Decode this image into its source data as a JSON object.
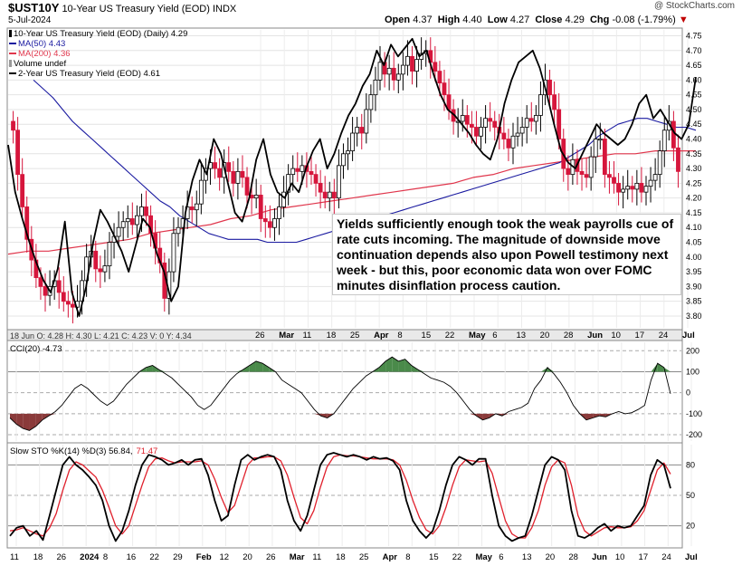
{
  "header": {
    "symbol": "$UST10Y",
    "name": "10-Year US Treasury Yield (EOD)",
    "exchange": "INDX",
    "date": "5-Jul-2024",
    "open_label": "Open",
    "open": "4.37",
    "high_label": "High",
    "high": "4.40",
    "low_label": "Low",
    "low": "4.27",
    "close_label": "Close",
    "close": "4.29",
    "chg_label": "Chg",
    "chg": "-0.08 (-1.79%)",
    "chg_icon": "down-triangle-icon",
    "watermark": "@ StockCharts.com"
  },
  "legend": {
    "main": "10-Year US Treasury Yield (EOD) (Daily) 4.29",
    "ma50": "MA(50) 4.43",
    "ma200": "MA(200) 4.36",
    "volume": "Volume undef",
    "two_year": "2-Year US Treasury Yield (EOD) 4.61"
  },
  "annotation": "Yields sufficiently enough took the weak payrolls cue of rate cuts incoming. The magnitude of downside move continuation depends also upon Powell testimony next week - but this, poor economic data won over FOMC minutes disinflation process caution.",
  "ohlc_readout": "18 Jun O: 4.28  H: 4.30  L: 4.21  C: 4.23  V: 0  Y: 4.34",
  "cci_label": "CCI(20) -4.73",
  "sto_label": "Slow STO %K(14) %D(3) 56.84, 71.47",
  "sto_label_k": "Slow STO %K(14) %D(3) 56.84,",
  "sto_label_d": "71.47",
  "colors": {
    "up": "#000000",
    "down": "#d6163c",
    "ma50": "#1a1aa0",
    "ma200": "#e0364c",
    "two_year": "#000000",
    "cci_fill": "#4a8a4a",
    "cci_fill_neg": "#8a3a3a",
    "sto_k": "#000000",
    "sto_d": "#e0202c"
  },
  "chart_data": [
    {
      "type": "candlestick",
      "title": "$UST10Y 10-Year US Treasury Yield (EOD) INDX",
      "ylim": [
        3.76,
        4.77
      ],
      "yticks": [
        "3.80",
        "3.85",
        "3.90",
        "3.95",
        "4.00",
        "4.05",
        "4.10",
        "4.15",
        "4.20",
        "4.25",
        "4.30",
        "4.35",
        "4.40",
        "4.45",
        "4.50",
        "4.55",
        "4.60",
        "4.65",
        "4.70",
        "4.75"
      ],
      "x_labels_main": [
        "26",
        "Mar",
        "11",
        "18",
        "25",
        "Apr",
        "8",
        "15",
        "22",
        "May",
        "6",
        "13",
        "20",
        "28",
        "Jun",
        "10",
        "17",
        "24",
        "Jul"
      ],
      "x_labels_bottom": [
        "11",
        "18",
        "26",
        "2024",
        "8",
        "16",
        "22",
        "29",
        "Feb",
        "12",
        "20",
        "26",
        "Mar",
        "11",
        "18",
        "25",
        "Apr",
        "8",
        "15",
        "22",
        "May",
        "6",
        "13",
        "20",
        "28",
        "Jun",
        "10",
        "17",
        "24",
        "Jul"
      ],
      "closes": [
        4.43,
        4.28,
        4.17,
        4.06,
        3.99,
        3.93,
        3.9,
        3.87,
        3.9,
        3.92,
        3.88,
        3.85,
        3.84,
        3.83,
        3.85,
        3.92,
        4.0,
        4.02,
        3.96,
        3.95,
        3.97,
        4.05,
        4.07,
        4.1,
        4.12,
        4.13,
        4.11,
        4.14,
        4.17,
        4.14,
        4.08,
        4.03,
        3.98,
        3.86,
        3.95,
        4.08,
        4.1,
        4.13,
        4.17,
        4.16,
        4.18,
        4.26,
        4.3,
        4.32,
        4.3,
        4.27,
        4.32,
        4.29,
        4.25,
        4.29,
        4.27,
        4.21,
        4.2,
        4.21,
        4.13,
        4.12,
        4.1,
        4.13,
        4.17,
        4.22,
        4.28,
        4.3,
        4.29,
        4.31,
        4.29,
        4.28,
        4.25,
        4.22,
        4.2,
        4.22,
        4.2,
        4.31,
        4.35,
        4.36,
        4.42,
        4.44,
        4.42,
        4.5,
        4.55,
        4.6,
        4.66,
        4.62,
        4.64,
        4.6,
        4.62,
        4.65,
        4.68,
        4.63,
        4.67,
        4.69,
        4.7,
        4.66,
        4.63,
        4.59,
        4.55,
        4.5,
        4.46,
        4.46,
        4.48,
        4.45,
        4.44,
        4.41,
        4.44,
        4.47,
        4.46,
        4.44,
        4.42,
        4.4,
        4.37,
        4.41,
        4.42,
        4.44,
        4.47,
        4.46,
        4.48,
        4.55,
        4.6,
        4.55,
        4.5,
        4.4,
        4.3,
        4.28,
        4.33,
        4.29,
        4.28,
        4.27,
        4.34,
        4.4,
        4.4,
        4.28,
        4.27,
        4.25,
        4.22,
        4.23,
        4.24,
        4.23,
        4.25,
        4.22,
        4.24,
        4.26,
        4.28,
        4.36,
        4.43,
        4.46,
        4.37,
        4.29
      ],
      "series": [
        {
          "name": "MA(50) 4.43",
          "values": [
            4.6,
            4.57,
            4.54,
            4.5,
            4.46,
            4.43,
            4.4,
            4.37,
            4.34,
            4.31,
            4.28,
            4.25,
            4.22,
            4.19,
            4.17,
            4.14,
            4.12,
            4.1,
            4.08,
            4.07,
            4.06,
            4.06,
            4.06,
            4.06,
            4.05,
            4.05,
            4.05,
            4.05,
            4.06,
            4.07,
            4.08,
            4.09,
            4.1,
            4.11,
            4.12,
            4.13,
            4.14,
            4.15,
            4.16,
            4.17,
            4.18,
            4.19,
            4.2,
            4.21,
            4.22,
            4.23,
            4.24,
            4.25,
            4.26,
            4.27,
            4.28,
            4.29,
            4.3,
            4.31,
            4.32,
            4.34,
            4.36,
            4.38,
            4.41,
            4.43,
            4.45,
            4.46,
            4.47,
            4.47,
            4.46,
            4.45,
            4.44,
            4.44,
            4.43
          ]
        },
        {
          "name": "MA(200) 4.36",
          "values": [
            4.01,
            4.02,
            4.02,
            4.03,
            4.04,
            4.05,
            4.06,
            4.08,
            4.09,
            4.1,
            4.11,
            4.13,
            4.14,
            4.16,
            4.17,
            4.18,
            4.19,
            4.2,
            4.21,
            4.22,
            4.23,
            4.24,
            4.25,
            4.27,
            4.28,
            4.3,
            4.31,
            4.32,
            4.33,
            4.34,
            4.35,
            4.35,
            4.36,
            4.36,
            4.36
          ]
        },
        {
          "name": "2-Year US Treasury Yield (EOD) 4.61",
          "values": [
            4.38,
            4.22,
            4.13,
            4.05,
            3.98,
            3.92,
            3.88,
            3.96,
            4.12,
            3.88,
            3.8,
            3.9,
            4.05,
            4.16,
            4.12,
            4.07,
            4.02,
            3.95,
            4.04,
            4.13,
            4.1,
            4.01,
            3.95,
            3.85,
            3.9,
            4.15,
            4.26,
            4.33,
            4.28,
            4.4,
            4.35,
            4.25,
            4.15,
            4.12,
            4.2,
            4.33,
            4.4,
            4.28,
            4.22,
            4.2,
            4.25,
            4.22,
            4.3,
            4.36,
            4.4,
            4.3,
            4.35,
            4.42,
            4.48,
            4.52,
            4.58,
            4.62,
            4.7,
            4.65,
            4.72,
            4.68,
            4.71,
            4.74,
            4.68,
            4.7,
            4.62,
            4.55,
            4.5,
            4.48,
            4.45,
            4.42,
            4.38,
            4.35,
            4.33,
            4.4,
            4.52,
            4.6,
            4.66,
            4.68,
            4.7,
            4.64,
            4.55,
            4.45,
            4.36,
            4.32,
            4.3,
            4.35,
            4.4,
            4.45,
            4.42,
            4.4,
            4.38,
            4.4,
            4.45,
            4.52,
            4.55,
            4.47,
            4.5,
            4.46,
            4.42,
            4.4,
            4.45,
            4.61
          ]
        }
      ]
    },
    {
      "type": "area",
      "title": "CCI(20) -4.73",
      "ylim": [
        -230,
        240
      ],
      "yticks": [
        -200,
        -100,
        0,
        100,
        200
      ],
      "values": [
        -120,
        -150,
        -170,
        -180,
        -160,
        -130,
        -110,
        -90,
        -60,
        -20,
        20,
        40,
        20,
        -10,
        -40,
        -60,
        -40,
        0,
        40,
        70,
        100,
        120,
        130,
        110,
        90,
        70,
        40,
        10,
        -20,
        -60,
        -80,
        -60,
        -20,
        20,
        60,
        90,
        110,
        130,
        150,
        140,
        120,
        100,
        60,
        40,
        20,
        0,
        -40,
        -80,
        -110,
        -120,
        -100,
        -60,
        -20,
        20,
        50,
        80,
        100,
        120,
        150,
        170,
        150,
        160,
        130,
        110,
        90,
        70,
        60,
        50,
        30,
        0,
        -40,
        -80,
        -110,
        -130,
        -120,
        -100,
        -110,
        -90,
        -80,
        -70,
        -50,
        20,
        60,
        120,
        90,
        50,
        0,
        -60,
        -100,
        -130,
        -120,
        -110,
        -115,
        -100,
        -90,
        -100,
        -95,
        -80,
        -60,
        60,
        140,
        120,
        -5
      ]
    },
    {
      "type": "line",
      "title": "Slow STO %K(14) %D(3) 56.84, 71.47",
      "ylim": [
        0,
        100
      ],
      "yticks": [
        20,
        50,
        80
      ],
      "series": [
        {
          "name": "%K(14) 56.84",
          "values": [
            10,
            18,
            20,
            10,
            15,
            6,
            30,
            55,
            80,
            88,
            80,
            75,
            68,
            60,
            45,
            20,
            5,
            15,
            35,
            60,
            80,
            90,
            88,
            85,
            80,
            82,
            85,
            80,
            85,
            86,
            70,
            45,
            25,
            30,
            60,
            85,
            90,
            85,
            88,
            90,
            88,
            75,
            45,
            25,
            15,
            30,
            55,
            80,
            90,
            92,
            90,
            88,
            90,
            88,
            85,
            88,
            86,
            87,
            84,
            75,
            45,
            25,
            15,
            8,
            15,
            35,
            60,
            80,
            88,
            85,
            80,
            86,
            86,
            50,
            20,
            10,
            5,
            8,
            10,
            30,
            55,
            80,
            88,
            85,
            75,
            35,
            10,
            8,
            12,
            18,
            22,
            15,
            20,
            18,
            20,
            30,
            40,
            70,
            85,
            80,
            57
          ]
        },
        {
          "name": "%D(3) 71.47",
          "values": [
            15,
            16,
            18,
            15,
            12,
            10,
            18,
            32,
            55,
            75,
            83,
            80,
            74,
            68,
            55,
            38,
            20,
            12,
            20,
            40,
            60,
            78,
            86,
            87,
            84,
            82,
            83,
            83,
            83,
            84,
            80,
            66,
            48,
            33,
            40,
            60,
            80,
            87,
            87,
            88,
            88,
            84,
            70,
            48,
            28,
            22,
            35,
            58,
            78,
            88,
            90,
            89,
            89,
            88,
            87,
            86,
            86,
            86,
            85,
            80,
            65,
            45,
            28,
            16,
            12,
            20,
            38,
            60,
            78,
            85,
            84,
            83,
            84,
            72,
            48,
            25,
            12,
            8,
            8,
            18,
            35,
            60,
            78,
            85,
            82,
            60,
            30,
            15,
            10,
            14,
            18,
            19,
            18,
            18,
            19,
            25,
            35,
            55,
            75,
            82,
            71
          ]
        }
      ]
    }
  ]
}
